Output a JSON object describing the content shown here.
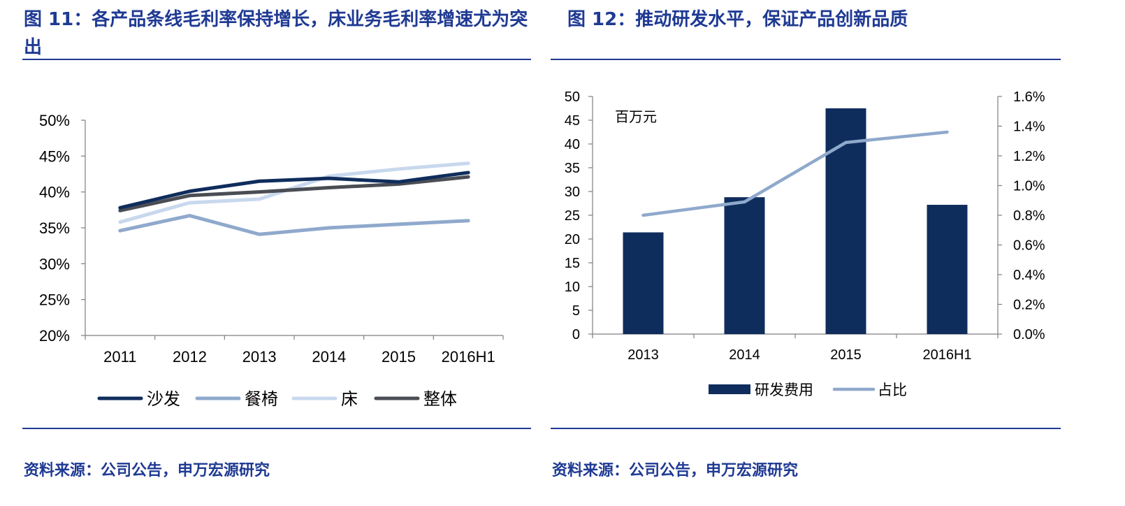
{
  "figure_left": {
    "title": "图 11：各产品条线毛利率保持增长，床业务毛利率增速尤为突出",
    "source": "资料来源：公司公告，申万宏源研究"
  },
  "figure_right": {
    "title": "图 12：推动研发水平，保证产品创新品质",
    "source": "资料来源：公司公告，申万宏源研究"
  },
  "colors": {
    "header_blue": "#1f3a93",
    "navy": "#0f2d5c",
    "steel": "#8fa9cc",
    "pale": "#c8d8ee",
    "gray": "#4a4d53"
  },
  "chart_data": [
    {
      "type": "line",
      "title": "",
      "categories": [
        "2011",
        "2012",
        "2013",
        "2014",
        "2015",
        "2016H1"
      ],
      "ylim": [
        0.2,
        0.5
      ],
      "yticks": [
        "20%",
        "25%",
        "30%",
        "35%",
        "40%",
        "45%",
        "50%"
      ],
      "legend_position": "bottom",
      "series": [
        {
          "name": "沙发",
          "color": "#0f2d5c",
          "values": [
            0.378,
            0.401,
            0.415,
            0.419,
            0.414,
            0.427
          ]
        },
        {
          "name": "餐椅",
          "color": "#8fa9cc",
          "values": [
            0.346,
            0.367,
            0.341,
            0.35,
            0.355,
            0.36
          ]
        },
        {
          "name": "床",
          "color": "#c8d8ee",
          "values": [
            0.358,
            0.385,
            0.39,
            0.422,
            0.432,
            0.44
          ]
        },
        {
          "name": "整体",
          "color": "#4a4d53",
          "values": [
            0.374,
            0.395,
            0.4,
            0.406,
            0.411,
            0.421
          ]
        }
      ]
    },
    {
      "type": "bar",
      "title": "",
      "unit_label": "百万元",
      "categories": [
        "2013",
        "2014",
        "2015",
        "2016H1"
      ],
      "ylim": [
        0,
        50
      ],
      "yticks": [
        "0",
        "5",
        "10",
        "15",
        "20",
        "25",
        "30",
        "35",
        "40",
        "45",
        "50"
      ],
      "y2lim": [
        0,
        0.016
      ],
      "y2ticks": [
        "0.0%",
        "0.2%",
        "0.4%",
        "0.6%",
        "0.8%",
        "1.0%",
        "1.2%",
        "1.4%",
        "1.6%"
      ],
      "legend_position": "bottom",
      "series": [
        {
          "name": "研发费用",
          "kind": "bar",
          "axis": "left",
          "color": "#0f2d5c",
          "values": [
            21.4,
            28.8,
            47.5,
            27.2
          ]
        },
        {
          "name": "占比",
          "kind": "line",
          "axis": "right",
          "color": "#8fa9cc",
          "values": [
            0.008,
            0.0089,
            0.0129,
            0.0136
          ]
        }
      ]
    }
  ]
}
